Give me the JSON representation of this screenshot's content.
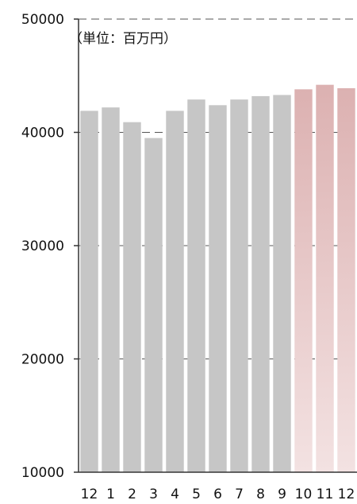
{
  "chart_data": {
    "type": "bar",
    "title": "",
    "unit_note": "（単位：百万円）",
    "xlabel": "",
    "ylabel": "",
    "ylim": [
      10000,
      50000
    ],
    "yticks": [
      10000,
      20000,
      30000,
      40000,
      50000
    ],
    "grid": "horizontal dashed",
    "categories": [
      "12",
      "1",
      "2",
      "3",
      "4",
      "5",
      "6",
      "7",
      "8",
      "9",
      "10",
      "11",
      "12"
    ],
    "values": [
      41900,
      42200,
      40900,
      39500,
      41900,
      42900,
      42400,
      42900,
      43200,
      43300,
      43800,
      44200,
      43900
    ],
    "bar_colors": {
      "actual": "#c6c6c6",
      "highlight_top": "#dcb1b1",
      "highlight_bottom": "#f3e2e2"
    },
    "highlighted_categories_from_index": 10
  }
}
